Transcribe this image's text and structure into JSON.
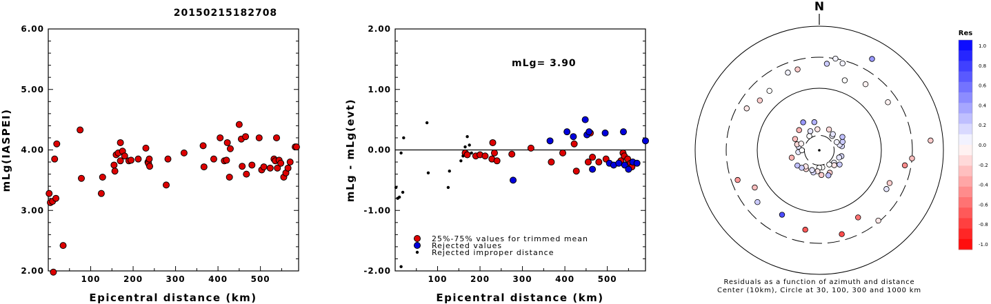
{
  "title": "20150215182708",
  "chart_data": [
    {
      "type": "scatter",
      "xlabel": "Epicentral distance (km)",
      "ylabel": "mLg(IASPEI)",
      "xlim": [
        0,
        590
      ],
      "ylim": [
        2.0,
        6.0
      ],
      "xticks": [
        "100",
        "200",
        "300",
        "400",
        "500"
      ],
      "yticks": [
        "2.00",
        "3.00",
        "4.00",
        "5.00",
        "6.00"
      ],
      "points": [
        [
          2,
          3.28
        ],
        [
          5,
          3.13
        ],
        [
          10,
          3.15
        ],
        [
          12,
          1.98
        ],
        [
          15,
          3.85
        ],
        [
          18,
          3.2
        ],
        [
          20,
          4.1
        ],
        [
          35,
          2.42
        ],
        [
          75,
          4.33
        ],
        [
          78,
          3.53
        ],
        [
          125,
          3.28
        ],
        [
          128,
          3.55
        ],
        [
          155,
          3.75
        ],
        [
          157,
          3.65
        ],
        [
          160,
          3.92
        ],
        [
          165,
          3.95
        ],
        [
          170,
          4.12
        ],
        [
          170,
          3.82
        ],
        [
          175,
          3.98
        ],
        [
          180,
          3.9
        ],
        [
          190,
          3.82
        ],
        [
          195,
          3.83
        ],
        [
          212,
          3.85
        ],
        [
          230,
          4.03
        ],
        [
          235,
          3.8
        ],
        [
          236,
          3.78
        ],
        [
          238,
          3.85
        ],
        [
          239,
          3.73
        ],
        [
          278,
          3.42
        ],
        [
          282,
          3.85
        ],
        [
          320,
          3.95
        ],
        [
          365,
          4.07
        ],
        [
          367,
          3.72
        ],
        [
          390,
          3.85
        ],
        [
          405,
          4.2
        ],
        [
          415,
          3.82
        ],
        [
          420,
          3.83
        ],
        [
          422,
          4.12
        ],
        [
          427,
          3.55
        ],
        [
          429,
          4.02
        ],
        [
          450,
          4.42
        ],
        [
          455,
          4.18
        ],
        [
          457,
          3.73
        ],
        [
          465,
          4.22
        ],
        [
          467,
          3.6
        ],
        [
          480,
          3.75
        ],
        [
          497,
          4.2
        ],
        [
          503,
          3.67
        ],
        [
          508,
          3.72
        ],
        [
          523,
          3.7
        ],
        [
          532,
          3.85
        ],
        [
          535,
          3.82
        ],
        [
          538,
          4.2
        ],
        [
          540,
          3.7
        ],
        [
          544,
          3.83
        ],
        [
          548,
          3.78
        ],
        [
          555,
          3.55
        ],
        [
          560,
          3.62
        ],
        [
          565,
          3.7
        ],
        [
          570,
          3.8
        ],
        [
          582,
          4.05
        ],
        [
          585,
          4.05
        ]
      ]
    },
    {
      "type": "scatter",
      "xlabel": "Epicentral distance (km)",
      "ylabel": "mLg - mLg(evt)",
      "xlim": [
        0,
        590
      ],
      "ylim": [
        -2.0,
        2.0
      ],
      "xticks": [
        "100",
        "200",
        "300",
        "400",
        "500"
      ],
      "yticks": [
        "-2.00",
        "-1.00",
        "0.00",
        "1.00",
        "2.00"
      ],
      "annotation": "mLg= 3.90",
      "legend": [
        "25%-75% values for trimmed mean",
        "Rejected values",
        "Rejected improper distance"
      ],
      "legend_position": "bottom-left",
      "series": [
        {
          "name": "25%-75% values for trimmed mean",
          "color": "#dd0000",
          "points": [
            [
              165,
              -0.05
            ],
            [
              170,
              -0.08
            ],
            [
              190,
              -0.1
            ],
            [
              200,
              -0.08
            ],
            [
              212,
              -0.1
            ],
            [
              228,
              -0.15
            ],
            [
              230,
              0.12
            ],
            [
              234,
              -0.05
            ],
            [
              240,
              -0.18
            ],
            [
              275,
              -0.07
            ],
            [
              320,
              0.03
            ],
            [
              368,
              -0.2
            ],
            [
              395,
              -0.05
            ],
            [
              422,
              0.1
            ],
            [
              427,
              -0.35
            ],
            [
              455,
              -0.2
            ],
            [
              460,
              0.28
            ],
            [
              465,
              -0.12
            ],
            [
              480,
              -0.2
            ],
            [
              497,
              -0.15
            ],
            [
              532,
              -0.18
            ],
            [
              537,
              -0.05
            ],
            [
              540,
              -0.1
            ],
            [
              548,
              -0.15
            ],
            [
              555,
              -0.22
            ],
            [
              558,
              -0.28
            ]
          ]
        },
        {
          "name": "Rejected values",
          "color": "#0000dd",
          "points": [
            [
              278,
              -0.5
            ],
            [
              365,
              0.15
            ],
            [
              405,
              0.3
            ],
            [
              420,
              0.22
            ],
            [
              448,
              0.5
            ],
            [
              452,
              0.25
            ],
            [
              457,
              0.3
            ],
            [
              465,
              -0.32
            ],
            [
              495,
              0.28
            ],
            [
              505,
              -0.22
            ],
            [
              515,
              -0.25
            ],
            [
              527,
              -0.22
            ],
            [
              538,
              0.3
            ],
            [
              541,
              -0.25
            ],
            [
              550,
              -0.32
            ],
            [
              560,
              -0.2
            ],
            [
              570,
              -0.22
            ],
            [
              590,
              0.15
            ]
          ]
        },
        {
          "name": "Rejected improper distance",
          "color": "#000000",
          "points": [
            [
              2,
              -0.62
            ],
            [
              6,
              -0.8
            ],
            [
              10,
              -0.78
            ],
            [
              14,
              -1.93
            ],
            [
              18,
              -0.7
            ],
            [
              20,
              0.2
            ],
            [
              14,
              -0.05
            ],
            [
              75,
              0.45
            ],
            [
              78,
              -0.38
            ],
            [
              125,
              -0.62
            ],
            [
              128,
              -0.35
            ],
            [
              155,
              -0.18
            ],
            [
              160,
              -0.1
            ],
            [
              165,
              0.05
            ],
            [
              170,
              0.22
            ],
            [
              175,
              0.08
            ],
            [
              180,
              -0.05
            ]
          ]
        }
      ],
      "reference_line": 0.0
    },
    {
      "type": "scatter",
      "subtype": "polar",
      "north_label": "N",
      "caption": [
        "Residuals as a function of azimuth and distance",
        "Center (10km), Circle at 30, 100, 300 and 1000 km"
      ],
      "colorbar_title": "Res",
      "colorbar_ticks": [
        "1.0",
        "0.8",
        "0.6",
        "0.4",
        "0.2",
        "0.0",
        "-0.2",
        "-0.4",
        "-0.6",
        "-0.8",
        "-1.0"
      ],
      "colorbar_range": [
        -1.0,
        1.0
      ],
      "rings_km": [
        10,
        30,
        100,
        300,
        1000
      ],
      "points": [
        [
          165,
          -0.4,
          -0.7
        ],
        [
          150,
          -0.25,
          -0.55
        ],
        [
          190,
          -0.3,
          -0.65
        ],
        [
          140,
          0.48,
          -0.1
        ],
        [
          210,
          -0.2,
          0.7
        ],
        [
          235,
          -0.1,
          0.25
        ],
        [
          265,
          0.0,
          0.1
        ],
        [
          100,
          -0.4,
          -0.45
        ],
        [
          105,
          0.0,
          0.15
        ],
        [
          95,
          0.5,
          -0.25
        ],
        [
          85,
          0.8,
          -0.2
        ],
        [
          80,
          0.15,
          0.15
        ],
        [
          75,
          0.05,
          0.1
        ],
        [
          70,
          0.0,
          0.2
        ],
        [
          65,
          0.0,
          0.05
        ],
        [
          60,
          0.0,
          0.25
        ],
        [
          55,
          0.35,
          -0.05
        ],
        [
          42,
          0.0,
          0.05
        ],
        [
          40,
          0.0,
          0.1
        ],
        [
          35,
          0.3,
          -0.05
        ],
        [
          30,
          0.7,
          0.4
        ],
        [
          25,
          0.0,
          -0.15
        ],
        [
          20,
          0.2,
          0.0
        ],
        [
          15,
          0.45,
          0.05
        ],
        [
          10,
          0.5,
          0.05
        ],
        [
          5,
          0.4,
          0.2
        ],
        [
          350,
          0.1,
          0.3
        ],
        [
          345,
          0.35,
          -0.2
        ],
        [
          338,
          0.35,
          0.05
        ],
        [
          330,
          0.1,
          0.4
        ],
        [
          320,
          0.25,
          0.0
        ],
        [
          310,
          0.25,
          -0.2
        ],
        [
          300,
          0.35,
          -0.1
        ],
        [
          120,
          0.25,
          0.1
        ],
        [
          125,
          0.05,
          0.2
        ],
        [
          115,
          0.25,
          -0.2
        ],
        [
          110,
          0.05,
          0.1
        ],
        [
          130,
          0.0,
          0.05
        ],
        [
          135,
          0.0,
          -0.1
        ],
        [
          145,
          0.15,
          0.0
        ],
        [
          155,
          0.05,
          -0.2
        ],
        [
          160,
          0.0,
          0.25
        ],
        [
          170,
          0.05,
          0.0
        ],
        [
          175,
          0.0,
          -0.2
        ],
        [
          180,
          0.15,
          0.0
        ],
        [
          185,
          0.05,
          -0.1
        ],
        [
          195,
          0.05,
          0.15
        ],
        [
          200,
          0.0,
          0.1
        ],
        [
          215,
          0.0,
          -0.15
        ],
        [
          220,
          0.05,
          -0.1
        ],
        [
          225,
          0.0,
          0.2
        ],
        [
          230,
          0.3,
          0.2
        ],
        [
          240,
          0.2,
          -0.25
        ],
        [
          250,
          0.4,
          -0.4
        ],
        [
          255,
          0.0,
          -0.3
        ],
        [
          270,
          0.0,
          0.0
        ],
        [
          280,
          0.0,
          0.1
        ],
        [
          285,
          0.0,
          -0.15
        ],
        [
          290,
          0.0,
          -0.05
        ],
        [
          295,
          0.0,
          -0.25
        ],
        [
          315,
          0.0,
          -0.3
        ],
        [
          325,
          0.0,
          0.0
        ],
        [
          335,
          0.0,
          0.1
        ],
        [
          355,
          0.0,
          -0.1
        ]
      ]
    }
  ]
}
